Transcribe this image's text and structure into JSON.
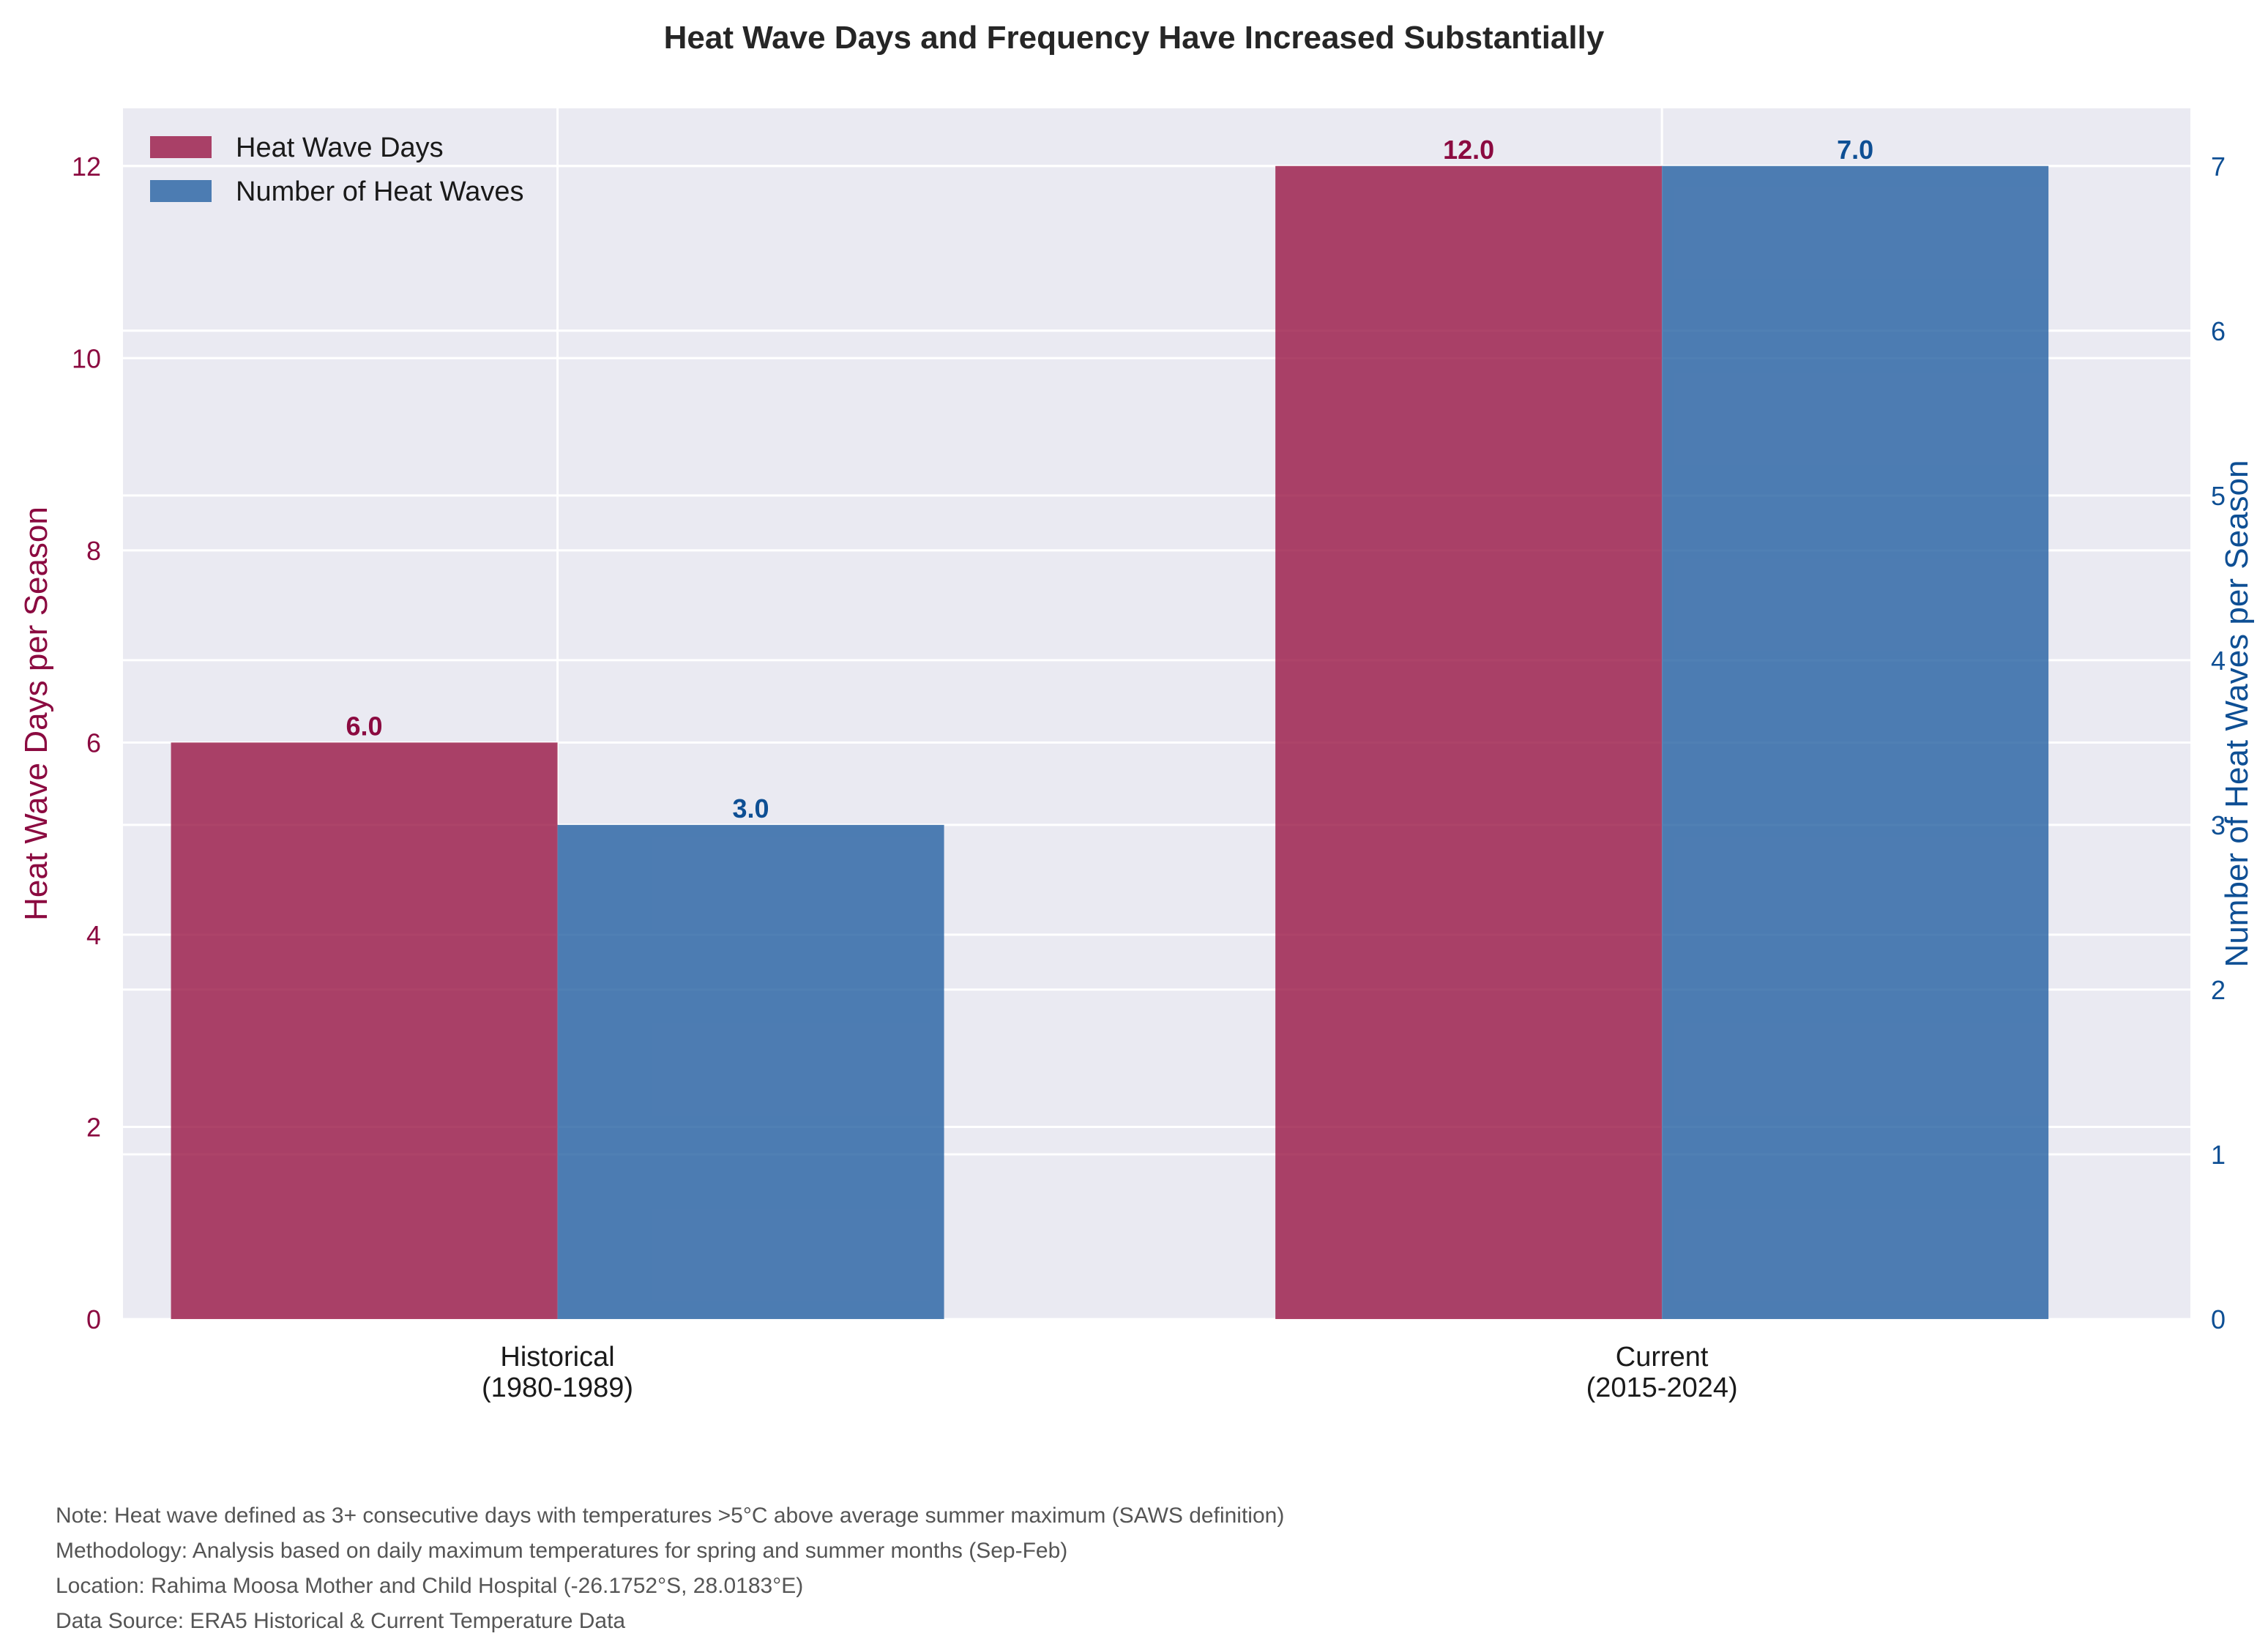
{
  "chart_data": {
    "type": "bar",
    "title": "Heat Wave Days and Frequency Have Increased Substantially",
    "categories": [
      [
        "Historical",
        "(1980-1989)"
      ],
      [
        "Current",
        "(2015-2024)"
      ]
    ],
    "series": [
      {
        "name": "Heat Wave Days",
        "axis": "left",
        "values": [
          6.0,
          12.0
        ],
        "labels": [
          "6.0",
          "12.0"
        ],
        "color": "#9B1B48"
      },
      {
        "name": "Number of Heat Waves",
        "axis": "right",
        "values": [
          3.0,
          7.0
        ],
        "labels": [
          "3.0",
          "7.0"
        ],
        "color": "#2A64A4"
      }
    ],
    "y_left": {
      "label": "Heat Wave Days per Season",
      "lim": [
        0,
        12.6
      ],
      "ticks": [
        0,
        2,
        4,
        6,
        8,
        10,
        12
      ],
      "color": "#8B0A40"
    },
    "y_right": {
      "label": "Number of Heat Waves per Season",
      "lim": [
        0,
        7.35
      ],
      "ticks": [
        0,
        1,
        2,
        3,
        4,
        5,
        6,
        7
      ],
      "color": "#0E4F94"
    },
    "grid": true,
    "legend": "top-left",
    "background": "#EAEAF2"
  },
  "notes": [
    "Note: Heat wave defined as 3+ consecutive days with temperatures >5°C above average summer maximum (SAWS definition)",
    "Methodology: Analysis based on daily maximum temperatures for spring and summer months (Sep-Feb)",
    "Location: Rahima Moosa Mother and Child Hospital (-26.1752°S, 28.0183°E)",
    "Data Source: ERA5 Historical & Current Temperature Data"
  ]
}
